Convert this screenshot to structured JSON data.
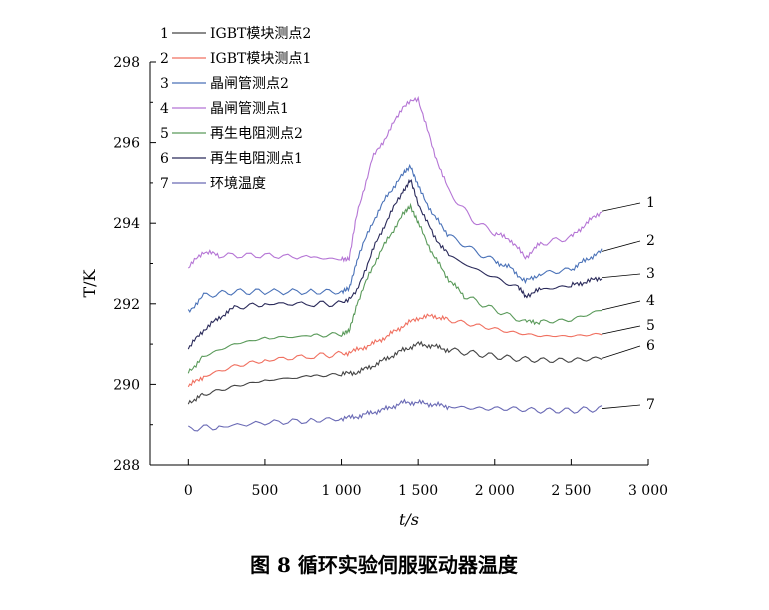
{
  "chart_data": {
    "type": "line",
    "caption": "图 8    循环实验伺服驱动器温度",
    "xlabel": "t/s",
    "ylabel": "T/K",
    "xlim": [
      -250,
      3000
    ],
    "ylim": [
      288,
      298
    ],
    "xticks": [
      0,
      500,
      1000,
      1500,
      2000,
      2500,
      3000
    ],
    "xtick_labels": [
      "0",
      "500",
      "1 000",
      "1 500",
      "2 000",
      "2 500",
      "3 000"
    ],
    "yticks": [
      288,
      290,
      292,
      294,
      296,
      298
    ],
    "ytick_labels": [
      "288",
      "290",
      "292",
      "294",
      "296",
      "298"
    ],
    "grid": false,
    "legend_position": "top-left",
    "series": [
      {
        "id": "1",
        "name": "IGBT模块测点2",
        "color": "#444444",
        "end_label": "6",
        "x": [
          0,
          100,
          300,
          500,
          800,
          1000,
          1100,
          1200,
          1300,
          1400,
          1500,
          1600,
          1700,
          1900,
          2100,
          2300,
          2500,
          2700
        ],
        "y": [
          289.55,
          289.75,
          289.95,
          290.1,
          290.2,
          290.25,
          290.3,
          290.45,
          290.65,
          290.85,
          291.0,
          290.95,
          290.85,
          290.75,
          290.65,
          290.6,
          290.6,
          290.65
        ]
      },
      {
        "id": "2",
        "name": "IGBT模块测点1",
        "color": "#f07060",
        "end_label": "5",
        "x": [
          0,
          100,
          300,
          500,
          800,
          1000,
          1100,
          1200,
          1300,
          1400,
          1500,
          1600,
          1700,
          1900,
          2100,
          2300,
          2500,
          2700
        ],
        "y": [
          289.95,
          290.2,
          290.45,
          290.6,
          290.7,
          290.75,
          290.85,
          291.0,
          291.2,
          291.45,
          291.65,
          291.7,
          291.6,
          291.45,
          291.3,
          291.2,
          291.2,
          291.25
        ]
      },
      {
        "id": "3",
        "name": "晶闸管测点2",
        "color": "#4a72b8",
        "end_label": "2",
        "x": [
          0,
          100,
          300,
          500,
          800,
          1000,
          1050,
          1100,
          1200,
          1300,
          1400,
          1450,
          1500,
          1600,
          1700,
          1850,
          2000,
          2100,
          2200,
          2300,
          2500,
          2600,
          2700
        ],
        "y": [
          291.8,
          292.2,
          292.3,
          292.3,
          292.3,
          292.3,
          292.35,
          293.1,
          294.0,
          294.7,
          295.2,
          295.45,
          294.9,
          294.2,
          293.7,
          293.35,
          293.05,
          292.9,
          292.55,
          292.75,
          292.85,
          293.1,
          293.3
        ]
      },
      {
        "id": "4",
        "name": "晶闸管测点1",
        "color": "#b575d5",
        "end_label": "1",
        "x": [
          0,
          100,
          200,
          500,
          800,
          1000,
          1050,
          1100,
          1200,
          1300,
          1400,
          1500,
          1600,
          1700,
          1850,
          2000,
          2100,
          2200,
          2300,
          2500,
          2600,
          2700
        ],
        "y": [
          292.9,
          293.3,
          293.2,
          293.2,
          293.15,
          293.1,
          293.15,
          294.2,
          295.6,
          296.2,
          296.9,
          297.1,
          295.8,
          294.8,
          294.1,
          293.75,
          293.6,
          293.15,
          293.5,
          293.65,
          294.0,
          294.3
        ]
      },
      {
        "id": "5",
        "name": "再生电阻测点2",
        "color": "#5a9a5a",
        "end_label": "4",
        "x": [
          0,
          100,
          300,
          500,
          800,
          1000,
          1050,
          1100,
          1200,
          1300,
          1400,
          1450,
          1500,
          1600,
          1700,
          1800,
          2000,
          2200,
          2300,
          2500,
          2700
        ],
        "y": [
          290.3,
          290.7,
          291.0,
          291.15,
          291.2,
          291.25,
          291.3,
          292.0,
          292.9,
          293.6,
          294.2,
          294.45,
          294.0,
          293.2,
          292.6,
          292.2,
          291.85,
          291.55,
          291.55,
          291.6,
          291.85
        ]
      },
      {
        "id": "6",
        "name": "再生电阻测点1",
        "color": "#2a2a5a",
        "end_label": "3",
        "x": [
          0,
          100,
          200,
          300,
          500,
          800,
          1000,
          1100,
          1200,
          1300,
          1400,
          1450,
          1500,
          1600,
          1700,
          1850,
          2000,
          2150,
          2200,
          2300,
          2500,
          2600,
          2700
        ],
        "y": [
          290.9,
          291.35,
          291.65,
          291.9,
          292.0,
          292.0,
          292.0,
          292.3,
          293.3,
          294.1,
          294.8,
          295.05,
          294.5,
          293.7,
          293.2,
          292.9,
          292.65,
          292.4,
          292.2,
          292.35,
          292.45,
          292.55,
          292.65
        ]
      },
      {
        "id": "7",
        "name": "环境温度",
        "color": "#6a6ab5",
        "end_label": "7",
        "x": [
          0,
          200,
          500,
          800,
          1000,
          1100,
          1200,
          1300,
          1400,
          1500,
          1600,
          1700,
          1900,
          2100,
          2300,
          2500,
          2700
        ],
        "y": [
          288.9,
          288.95,
          289.05,
          289.1,
          289.15,
          289.2,
          289.3,
          289.4,
          289.55,
          289.55,
          289.5,
          289.45,
          289.4,
          289.4,
          289.35,
          289.35,
          289.4
        ]
      }
    ]
  }
}
